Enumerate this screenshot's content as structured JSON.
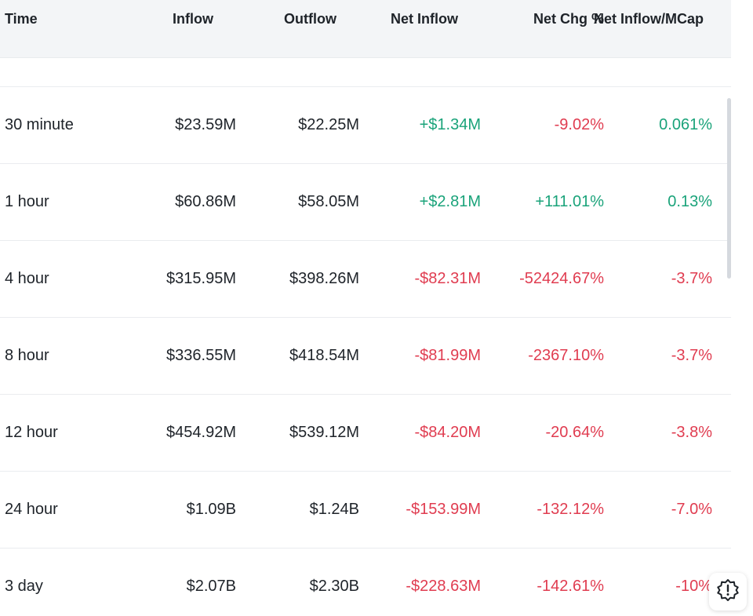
{
  "headers": {
    "time": "Time",
    "inflow": "Inflow",
    "outflow": "Outflow",
    "net_inflow": "Net Inflow",
    "net_chg": "Net Chg %",
    "net_mcap": "Net Inflow/MCap"
  },
  "rows": [
    {
      "time": "30 minute",
      "inflow": "$23.59M",
      "outflow": "$22.25M",
      "net": "+$1.34M",
      "chg": "-9.02%",
      "mcap": "0.061%"
    },
    {
      "time": "1 hour",
      "inflow": "$60.86M",
      "outflow": "$58.05M",
      "net": "+$2.81M",
      "chg": "+111.01%",
      "mcap": "0.13%"
    },
    {
      "time": "4 hour",
      "inflow": "$315.95M",
      "outflow": "$398.26M",
      "net": "-$82.31M",
      "chg": "-52424.67%",
      "mcap": "-3.7%"
    },
    {
      "time": "8 hour",
      "inflow": "$336.55M",
      "outflow": "$418.54M",
      "net": "-$81.99M",
      "chg": "-2367.10%",
      "mcap": "-3.7%"
    },
    {
      "time": "12 hour",
      "inflow": "$454.92M",
      "outflow": "$539.12M",
      "net": "-$84.20M",
      "chg": "-20.64%",
      "mcap": "-3.8%"
    },
    {
      "time": "24 hour",
      "inflow": "$1.09B",
      "outflow": "$1.24B",
      "net": "-$153.99M",
      "chg": "-132.12%",
      "mcap": "-7.0%"
    },
    {
      "time": "3 day",
      "inflow": "$2.07B",
      "outflow": "$2.30B",
      "net": "-$228.63M",
      "chg": "-142.61%",
      "mcap": "-10%"
    }
  ],
  "colors": {
    "positive": "#1aa37a",
    "negative": "#e03c50",
    "header_bg": "#f3f5f7"
  },
  "icons": {
    "feedback": "alert-badge-icon"
  }
}
